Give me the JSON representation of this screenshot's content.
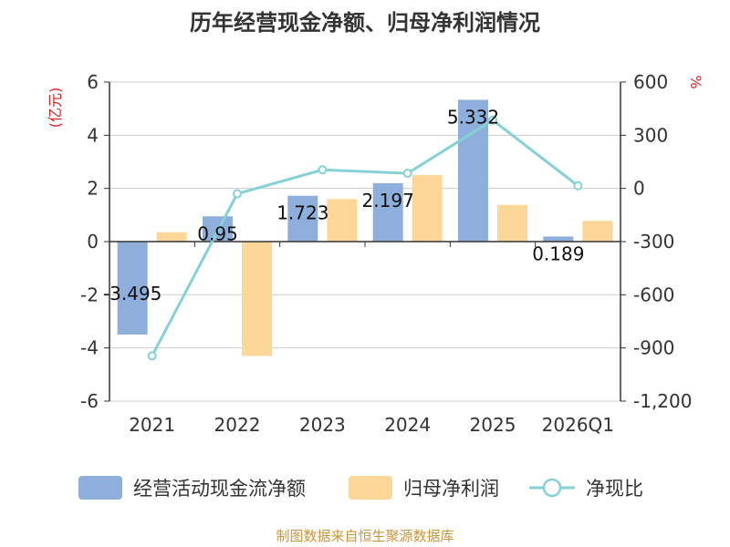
{
  "chart_data": {
    "type": "bar",
    "title": "历年经营现金净额、归母净利润情况",
    "categories": [
      "2021",
      "2022",
      "2023",
      "2024",
      "2025",
      "2026Q1"
    ],
    "series": [
      {
        "name": "经营活动现金流净额",
        "kind": "bar",
        "axis": "left",
        "color": "#8eaedb",
        "values": [
          -3.495,
          0.95,
          1.723,
          2.197,
          5.332,
          0.189
        ],
        "labels": [
          "-3.495",
          "0.95",
          "1.723",
          "2.197",
          "5.332",
          "0.189"
        ]
      },
      {
        "name": "归母净利润",
        "kind": "bar",
        "axis": "left",
        "color": "#fdd798",
        "values": [
          0.35,
          -4.3,
          1.6,
          2.5,
          1.38,
          0.78
        ]
      },
      {
        "name": "净现比",
        "kind": "line",
        "axis": "right",
        "color": "#86d1d6",
        "values": [
          -945,
          -30,
          105,
          85,
          385,
          15
        ]
      }
    ],
    "y_left": {
      "unit": "(亿元)",
      "min": -6,
      "max": 6,
      "ticks": [
        "6",
        "4",
        "2",
        "0",
        "-2",
        "-4",
        "-6"
      ]
    },
    "y_right": {
      "unit": "%",
      "min": -1200,
      "max": 600,
      "ticks": [
        "600",
        "300",
        "0",
        "-300",
        "-600",
        "-900",
        "-1,200"
      ]
    },
    "grid": true,
    "legend_position": "bottom"
  },
  "source": "制图数据来自恒生聚源数据库"
}
